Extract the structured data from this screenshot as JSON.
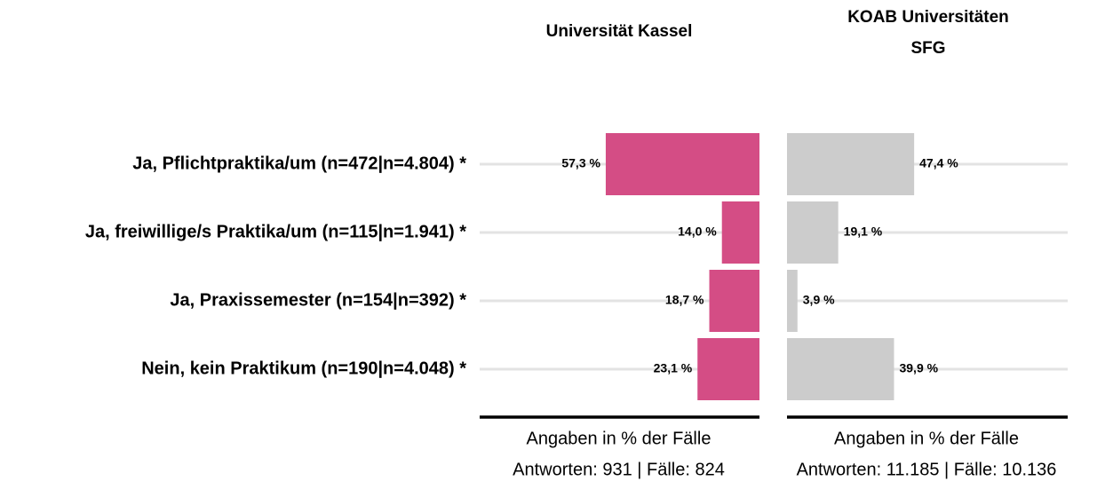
{
  "chart_data": {
    "type": "bar",
    "categories": [
      "Ja, Pflichtpraktika/um (n=472|n=4.804) *",
      "Ja, freiwillige/s Praktika/um (n=115|n=1.941) *",
      "Ja, Praxissemester (n=154|n=392) *",
      "Nein, kein Praktikum (n=190|n=4.048) *"
    ],
    "xlim": [
      0,
      100
    ],
    "grid": true,
    "series": [
      {
        "name": "Universität Kassel",
        "color": "#d44d85",
        "values": [
          57.3,
          14.0,
          18.7,
          23.1
        ],
        "value_labels": [
          "57,3 %",
          "14,0 %",
          "18,7 %",
          "23,1 %"
        ],
        "footer": [
          "Angaben in % der Fälle",
          "Antworten: 931 | Fälle: 824"
        ]
      },
      {
        "name": "KOAB Universitäten SFG",
        "color": "#cccccc",
        "values": [
          47.4,
          19.1,
          3.9,
          39.9
        ],
        "value_labels": [
          "47,4 %",
          "19,1 %",
          "3,9 %",
          "39,9 %"
        ],
        "footer": [
          "Angaben in % der Fälle",
          "Antworten: 11.185 | Fälle: 10.136"
        ]
      }
    ]
  }
}
